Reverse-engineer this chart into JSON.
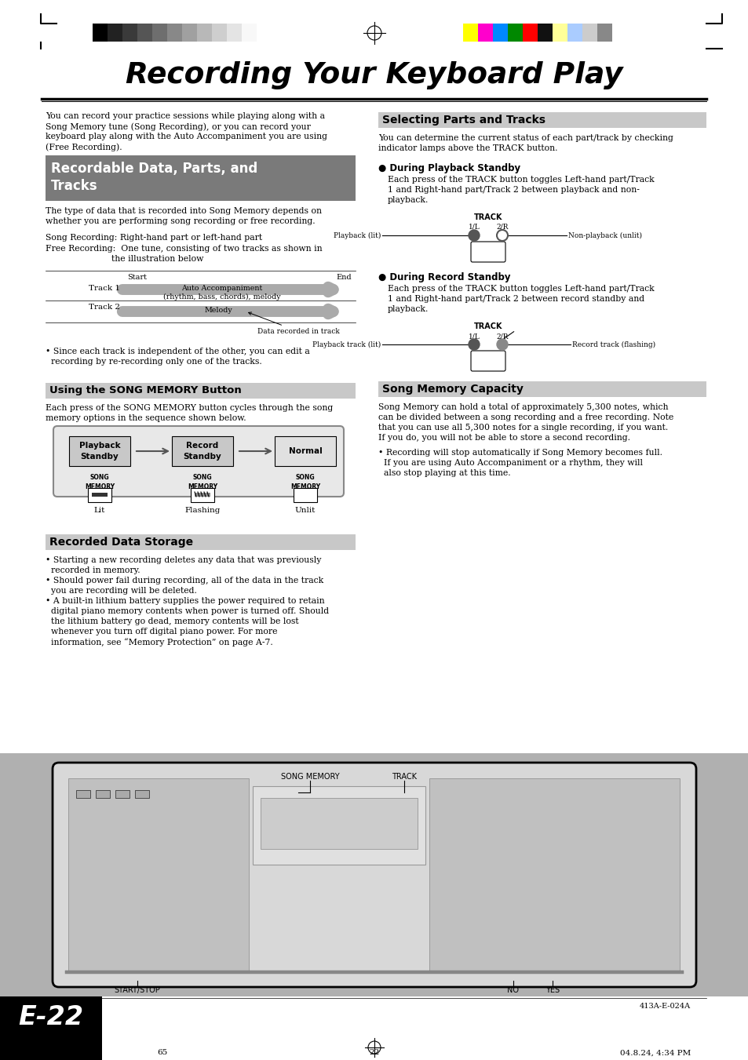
{
  "title": "Recording Your Keyboard Play",
  "page_bg": "#ffffff",
  "intro_text1": "You can record your practice sessions while playing along with a",
  "intro_text2": "Song Memory tune (Song Recording), or you can record your",
  "intro_text3": "keyboard play along with the Auto Accompaniment you are using",
  "intro_text4": "(Free Recording).",
  "sec1_title1": "Recordable Data, Parts, and",
  "sec1_title2": "Tracks",
  "sec1_bg": "#7a7a7a",
  "body1_line1": "The type of data that is recorded into Song Memory depends on",
  "body1_line2": "whether you are performing song recording or free recording.",
  "sr_line1": "Song Recording: Right-hand part or left-hand part",
  "fr_line1": "Free Recording:  One tune, consisting of two tracks as shown in",
  "fr_line2": "                        the illustration below",
  "track1_label": "Track 1",
  "track2_label": "Track 2",
  "start_label": "Start",
  "end_label": "End",
  "track1_content": "Auto Accompaniment\n(rhythm, bass, chords), melody",
  "track2_content": "Melody",
  "track_note": "Data recorded in track",
  "since_text1": "• Since each track is independent of the other, you can edit a",
  "since_text2": "  recording by re-recording only one of the tracks.",
  "sec1b_title": "Using the SONG MEMORY Button",
  "sec1b_bg": "#c8c8c8",
  "sec1b_body1": "Each press of the SONG MEMORY button cycles through the song",
  "sec1b_body2": "memory options in the sequence shown below.",
  "pb_label1": "Playback",
  "pb_label2": "Standby",
  "rec_label1": "Record",
  "rec_label2": "Standby",
  "norm_label": "Normal",
  "song_mem_label": "SONG\nMEMORY",
  "lit_label": "Lit",
  "flash_label": "Flashing",
  "unlit_label": "Unlit",
  "sec2_title": "Selecting Parts and Tracks",
  "sec2_bg": "#c8c8c8",
  "sec2_body1": "You can determine the current status of each part/track by checking",
  "sec2_body2": "indicator lamps above the TRACK button.",
  "dpb_title": "● During Playback Standby",
  "dpb_body1": "Each press of the TRACK button toggles Left-hand part/Track",
  "dpb_body2": "1 and Right-hand part/Track 2 between playback and non-",
  "dpb_body3": "playback.",
  "drs_title": "● During Record Standby",
  "drs_body1": "Each press of the TRACK button toggles Left-hand part/Track",
  "drs_body2": "1 and Right-hand part/Track 2 between record standby and",
  "drs_body3": "playback.",
  "smc_title": "Song Memory Capacity",
  "smc_bg": "#c8c8c8",
  "smc_body1": "Song Memory can hold a total of approximately 5,300 notes, which",
  "smc_body2": "can be divided between a song recording and a free recording. Note",
  "smc_body3": "that you can use all 5,300 notes for a single recording, if you want.",
  "smc_body4": "If you do, you will not be able to store a second recording.",
  "smc_bullet1": "• Recording will stop automatically if Song Memory becomes full.",
  "smc_bullet2": "  If you are using Auto Accompaniment or a rhythm, they will",
  "smc_bullet3": "  also stop playing at this time.",
  "rds_title": "Recorded Data Storage",
  "rds_bg": "#c8c8c8",
  "rds_b1_1": "• Starting a new recording deletes any data that was previously",
  "rds_b1_2": "  recorded in memory.",
  "rds_b2_1": "• Should power fail during recording, all of the data in the track",
  "rds_b2_2": "  you are recording will be deleted.",
  "rds_b3_1": "• A built-in lithium battery supplies the power required to retain",
  "rds_b3_2": "  digital piano memory contents when power is turned off. Should",
  "rds_b3_3": "  the lithium battery go dead, memory contents will be lost",
  "rds_b3_4": "  whenever you turn off digital piano power. For more",
  "rds_b3_5": "  information, see “Memory Protection” on page A-7.",
  "page_num": "E-22",
  "bottom_page": "22",
  "bottom_left_num": "65",
  "code_ref": "413A-E-024A",
  "date_ref": "04.8.24, 4:34 PM",
  "kb_area_bg": "#b8b8b8",
  "kb_bg": "#d8d8d8",
  "kb_inner_bg": "#e8e8e8",
  "strip_left": [
    "#000000",
    "#222222",
    "#3a3a3a",
    "#555555",
    "#6e6e6e",
    "#888888",
    "#a0a0a0",
    "#b8b8b8",
    "#cecece",
    "#e4e4e4",
    "#f8f8f8"
  ],
  "strip_right": [
    "#ffff00",
    "#ff00cc",
    "#0088ff",
    "#008800",
    "#ff0000",
    "#111111",
    "#ffff99",
    "#aaccff",
    "#cccccc",
    "#888888"
  ]
}
